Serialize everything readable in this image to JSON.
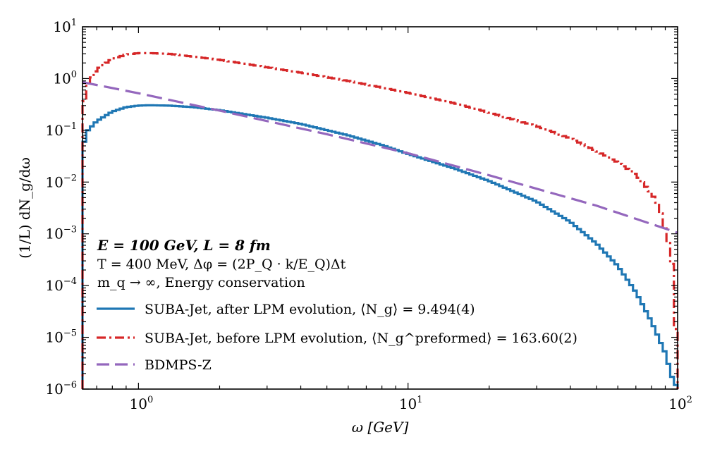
{
  "chart_data": {
    "type": "line",
    "x_scale": "log",
    "y_scale": "log",
    "xlim": [
      0.62,
      100
    ],
    "ylim": [
      1e-06,
      10
    ],
    "xlabel": "ω [GeV]",
    "ylabel": "(1/L) dN_g/dω",
    "x_ticks": [
      {
        "value": 1,
        "base": "10",
        "exp": "0"
      },
      {
        "value": 10,
        "base": "10",
        "exp": "1"
      },
      {
        "value": 100,
        "base": "10",
        "exp": "2"
      }
    ],
    "y_ticks": [
      {
        "value": 1e-06,
        "base": "10",
        "exp": "−6"
      },
      {
        "value": 1e-05,
        "base": "10",
        "exp": "−5"
      },
      {
        "value": 0.0001,
        "base": "10",
        "exp": "−4"
      },
      {
        "value": 0.001,
        "base": "10",
        "exp": "−3"
      },
      {
        "value": 0.01,
        "base": "10",
        "exp": "−2"
      },
      {
        "value": 0.1,
        "base": "10",
        "exp": "−1"
      },
      {
        "value": 1,
        "base": "10",
        "exp": "0"
      },
      {
        "value": 10,
        "base": "10",
        "exp": "1"
      }
    ],
    "annotations": [
      "E = 100 GeV,   L = 8 fm",
      "T = 400 MeV,   Δφ = (2P_Q · k/E_Q)Δt",
      "m_q → ∞,   Energy conservation"
    ],
    "legend_position": "bottom-left",
    "series": [
      {
        "name": "SUBA-Jet, after LPM evolution,   ⟨N_g⟩ = 9.494(4)",
        "color": "#1f77b4",
        "style": "steps",
        "points": [
          [
            0.62,
            1e-06
          ],
          [
            0.63,
            0.065
          ],
          [
            0.65,
            0.1
          ],
          [
            0.7,
            0.15
          ],
          [
            0.8,
            0.23
          ],
          [
            0.9,
            0.28
          ],
          [
            1.0,
            0.3
          ],
          [
            1.1,
            0.305
          ],
          [
            1.3,
            0.3
          ],
          [
            1.6,
            0.28
          ],
          [
            2.0,
            0.245
          ],
          [
            3.0,
            0.175
          ],
          [
            4.0,
            0.133
          ],
          [
            6.0,
            0.08
          ],
          [
            8.0,
            0.052
          ],
          [
            10,
            0.035
          ],
          [
            15,
            0.018
          ],
          [
            20,
            0.0105
          ],
          [
            30,
            0.0042
          ],
          [
            40,
            0.0017
          ],
          [
            50,
            0.00065
          ],
          [
            60,
            0.00024
          ],
          [
            70,
            7.5e-05
          ],
          [
            80,
            2e-05
          ],
          [
            90,
            5e-06
          ],
          [
            95,
            1.8e-06
          ],
          [
            100,
            1e-06
          ]
        ]
      },
      {
        "name": "SUBA-Jet, before LPM evolution, ⟨N_g^preformed⟩ = 163.60(2)",
        "color": "#d62728",
        "style": "dashdot-steps",
        "points": [
          [
            0.62,
            1e-06
          ],
          [
            0.63,
            0.4
          ],
          [
            0.65,
            0.8
          ],
          [
            0.7,
            1.5
          ],
          [
            0.8,
            2.4
          ],
          [
            0.9,
            2.9
          ],
          [
            1.0,
            3.1
          ],
          [
            1.1,
            3.1
          ],
          [
            1.3,
            3.0
          ],
          [
            1.6,
            2.65
          ],
          [
            2.0,
            2.3
          ],
          [
            3.0,
            1.65
          ],
          [
            4.0,
            1.3
          ],
          [
            6.0,
            0.9
          ],
          [
            8.0,
            0.67
          ],
          [
            10,
            0.53
          ],
          [
            15,
            0.33
          ],
          [
            20,
            0.22
          ],
          [
            30,
            0.12
          ],
          [
            40,
            0.07
          ],
          [
            50,
            0.04
          ],
          [
            60,
            0.024
          ],
          [
            70,
            0.014
          ],
          [
            80,
            0.006
          ],
          [
            85,
            0.0036
          ],
          [
            90,
            0.0012
          ],
          [
            95,
            0.00035
          ],
          [
            98,
            3e-05
          ],
          [
            100,
            1e-06
          ]
        ]
      },
      {
        "name": "BDMPS-Z",
        "color": "#9467bd",
        "style": "dashed",
        "points": [
          [
            0.62,
            0.85
          ],
          [
            1.0,
            0.52
          ],
          [
            2.0,
            0.24
          ],
          [
            5.0,
            0.084
          ],
          [
            10,
            0.036
          ],
          [
            20,
            0.0135
          ],
          [
            50,
            0.0035
          ],
          [
            100,
            0.00105
          ]
        ]
      }
    ]
  }
}
